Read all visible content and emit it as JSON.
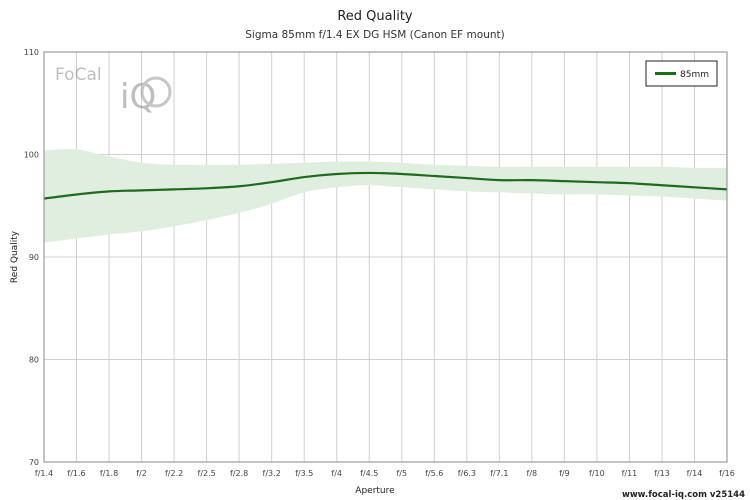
{
  "chart_data": {
    "type": "line",
    "title": "Red Quality",
    "subtitle": "Sigma 85mm f/1.4 EX DG HSM (Canon EF mount)",
    "xlabel": "Aperture",
    "ylabel": "Red Quality",
    "ylim": [
      70,
      110
    ],
    "yticks": [
      70,
      80,
      90,
      100,
      110
    ],
    "categories": [
      "f/1.4",
      "f/1.6",
      "f/1.8",
      "f/2",
      "f/2.2",
      "f/2.5",
      "f/2.8",
      "f/3.2",
      "f/3.5",
      "f/4",
      "f/4.5",
      "f/5",
      "f/5.6",
      "f/6.3",
      "f/7.1",
      "f/8",
      "f/9",
      "f/10",
      "f/11",
      "f/13",
      "f/14",
      "f/16"
    ],
    "series": [
      {
        "name": "85mm",
        "color": "#1e6b1e",
        "values": [
          95.7,
          96.1,
          96.4,
          96.5,
          96.6,
          96.7,
          96.9,
          97.3,
          97.8,
          98.1,
          98.2,
          98.1,
          97.9,
          97.7,
          97.5,
          97.5,
          97.4,
          97.3,
          97.2,
          97.0,
          96.8,
          96.6
        ],
        "upper": [
          100.4,
          100.5,
          99.8,
          99.2,
          99.0,
          99.0,
          99.0,
          99.1,
          99.2,
          99.3,
          99.3,
          99.2,
          99.0,
          98.9,
          98.8,
          98.8,
          98.8,
          98.8,
          98.8,
          98.8,
          98.7,
          98.7
        ],
        "lower": [
          91.4,
          91.8,
          92.2,
          92.5,
          93.0,
          93.6,
          94.3,
          95.2,
          96.3,
          96.8,
          97.0,
          96.8,
          96.6,
          96.4,
          96.3,
          96.2,
          96.1,
          96.1,
          96.0,
          95.9,
          95.7,
          95.5
        ]
      }
    ],
    "legend": "top-right",
    "grid": true,
    "band_color": "#e0eee0"
  },
  "logo": {
    "brand": "FoCal",
    "mark": "iQ"
  },
  "footer": "www.focal-iq.com v25144"
}
